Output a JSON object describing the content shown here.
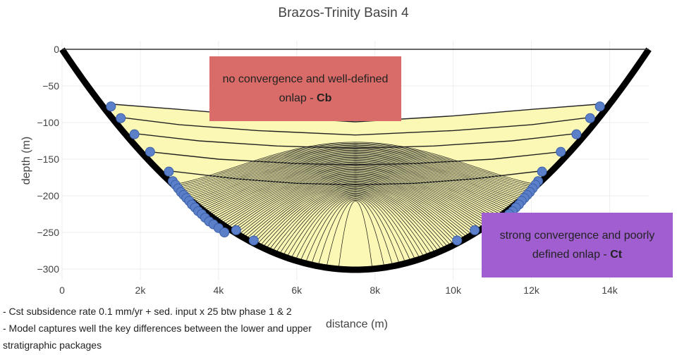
{
  "chart_data": {
    "type": "scatter",
    "title": "Brazos-Trinity Basin 4",
    "xlabel": "distance (m)",
    "ylabel": "depth (m)",
    "xlim": [
      0,
      15000
    ],
    "ylim": [
      -310,
      10
    ],
    "xticks": [
      0,
      2000,
      4000,
      6000,
      8000,
      10000,
      12000,
      14000
    ],
    "xtick_labels": [
      "0",
      "2k",
      "4k",
      "6k",
      "8k",
      "10k",
      "12k",
      "14k"
    ],
    "yticks": [
      0,
      -50,
      -100,
      -150,
      -200,
      -250,
      -300
    ],
    "ytick_labels": [
      "0",
      "−50",
      "−100",
      "−150",
      "−200",
      "−250",
      "−300"
    ],
    "basin_floor": {
      "x": [
        0,
        1000,
        2000,
        3000,
        4000,
        5000,
        6000,
        7000,
        7500,
        8000,
        9000,
        10000,
        11000,
        12000,
        13000,
        14000,
        15000
      ],
      "depth": [
        0,
        -68,
        -132,
        -188,
        -236,
        -271,
        -292,
        -300,
        -301,
        -300,
        -292,
        -271,
        -236,
        -188,
        -132,
        -68,
        0
      ]
    },
    "fill_color": "#fbf8b6",
    "upper_package_horizons": [
      {
        "x": [
          1300,
          3000,
          5000,
          7500,
          10000,
          12000,
          13700
        ],
        "depth": [
          -75,
          -82,
          -91,
          -99,
          -91,
          -82,
          -75
        ]
      },
      {
        "x": [
          1500,
          3000,
          5000,
          7500,
          10000,
          12000,
          13500
        ],
        "depth": [
          -93,
          -103,
          -111,
          -117,
          -111,
          -103,
          -93
        ]
      },
      {
        "x": [
          1850,
          3500,
          5500,
          7500,
          9500,
          11500,
          13150
        ],
        "depth": [
          -115,
          -125,
          -132,
          -135,
          -132,
          -125,
          -115
        ]
      },
      {
        "x": [
          2250,
          4000,
          6000,
          7500,
          9000,
          11000,
          12750
        ],
        "depth": [
          -140,
          -150,
          -156,
          -158,
          -156,
          -150,
          -140
        ]
      },
      {
        "x": [
          2730,
          4500,
          6000,
          7500,
          9000,
          10500,
          12270
        ],
        "depth": [
          -166,
          -177,
          -183,
          -185,
          -183,
          -177,
          -166
        ]
      }
    ],
    "lower_package": {
      "top_depth": -185,
      "converging_to": -300,
      "horizon_count": 60
    },
    "onlap_points": {
      "marker_color": "#5b7fc8",
      "x": [
        1250,
        1500,
        1850,
        2250,
        2730,
        2830,
        2900,
        2970,
        3040,
        3110,
        3180,
        3250,
        3320,
        3400,
        3480,
        3570,
        3660,
        3760,
        3870,
        4000,
        4150,
        4450,
        4900,
        13750,
        13500,
        13150,
        12750,
        12270,
        12170,
        12100,
        12030,
        11960,
        11890,
        11820,
        11750,
        11680,
        11600,
        11520,
        11430,
        11340,
        11240,
        11130,
        11000,
        10850,
        10550,
        10100
      ],
      "depth": [
        -78,
        -94,
        -116,
        -140,
        -167,
        -180,
        -185,
        -190,
        -195,
        -199,
        -203,
        -207,
        -212,
        -216,
        -221,
        -225,
        -230,
        -235,
        -239,
        -244,
        -250,
        -247,
        -261,
        -78,
        -94,
        -116,
        -140,
        -167,
        -180,
        -185,
        -190,
        -195,
        -199,
        -203,
        -207,
        -212,
        -216,
        -221,
        -225,
        -230,
        -235,
        -239,
        -244,
        -250,
        -247,
        -261
      ]
    }
  },
  "annotations": {
    "cb": {
      "text": "no convergence and well-defined onlap - ",
      "bold": "Cb",
      "color": "#d96c68"
    },
    "ct": {
      "text": "strong convergence and poorly defined onlap - ",
      "bold": "Ct",
      "color": "#a15ed1"
    }
  },
  "notes": [
    "- Cst subsidence rate 0.1 mm/yr + sed. input x 25 btw phase 1 & 2",
    "- Model captures well the key differences between the lower and upper stratigraphic packages"
  ]
}
